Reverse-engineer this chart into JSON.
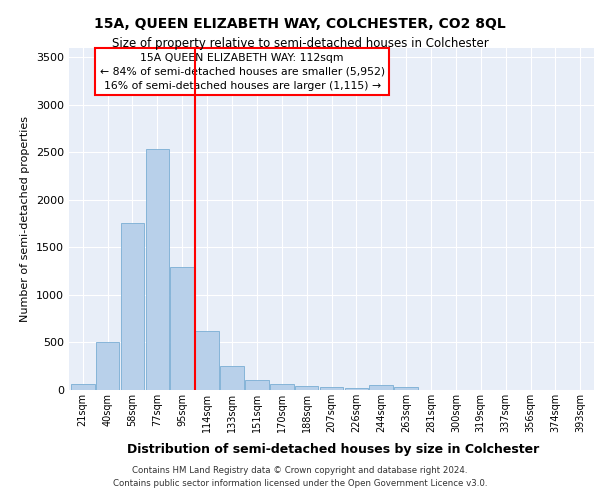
{
  "title1": "15A, QUEEN ELIZABETH WAY, COLCHESTER, CO2 8QL",
  "title2": "Size of property relative to semi-detached houses in Colchester",
  "xlabel": "Distribution of semi-detached houses by size in Colchester",
  "ylabel": "Number of semi-detached properties",
  "categories": [
    "21sqm",
    "40sqm",
    "58sqm",
    "77sqm",
    "95sqm",
    "114sqm",
    "133sqm",
    "151sqm",
    "170sqm",
    "188sqm",
    "207sqm",
    "226sqm",
    "244sqm",
    "263sqm",
    "281sqm",
    "300sqm",
    "319sqm",
    "337sqm",
    "356sqm",
    "374sqm",
    "393sqm"
  ],
  "values": [
    60,
    500,
    1760,
    2530,
    1290,
    620,
    250,
    100,
    60,
    40,
    30,
    20,
    50,
    30,
    5,
    2,
    2,
    1,
    1,
    1,
    1
  ],
  "bar_color": "#b8d0ea",
  "bar_edge_color": "#7aadd4",
  "annotation_line1": "15A QUEEN ELIZABETH WAY: 112sqm",
  "annotation_line2": "← 84% of semi-detached houses are smaller (5,952)",
  "annotation_line3": "16% of semi-detached houses are larger (1,115) →",
  "ylim": [
    0,
    3600
  ],
  "yticks": [
    0,
    500,
    1000,
    1500,
    2000,
    2500,
    3000,
    3500
  ],
  "footer1": "Contains HM Land Registry data © Crown copyright and database right 2024.",
  "footer2": "Contains public sector information licensed under the Open Government Licence v3.0.",
  "bg_color": "#e8eef8",
  "grid_color": "#ffffff",
  "fig_bg": "#ffffff"
}
